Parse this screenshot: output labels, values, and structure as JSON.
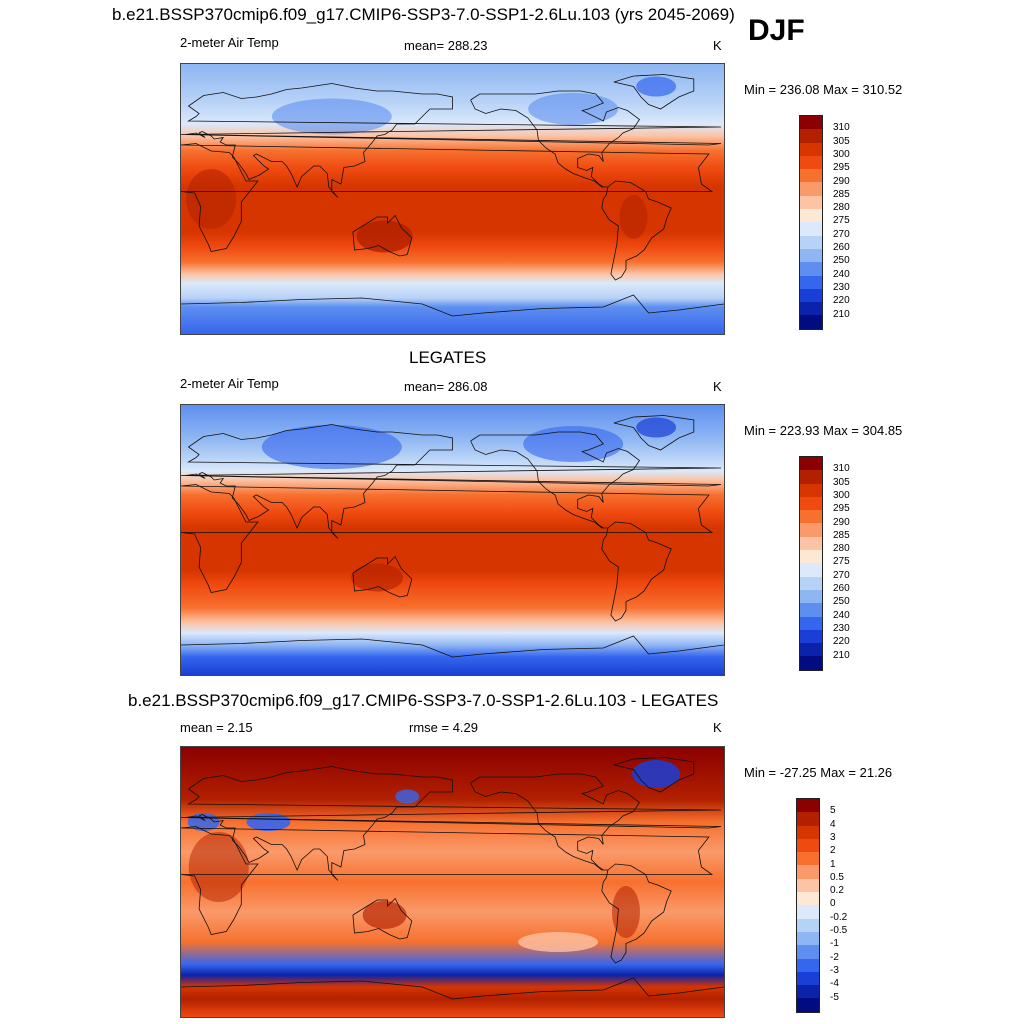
{
  "figure_title": "b.e21.BSSP370cmip6.f09_g17.CMIP6-SSP3-7.0-SSP1-2.6Lu.103 (yrs 2045-2069)",
  "season": "DJF",
  "panels": [
    {
      "id": "model",
      "heading": "",
      "left_label": "2-meter Air Temp",
      "center_label": "mean= 288.23",
      "right_label": "K",
      "range_text": "Min = 236.08 Max = 310.52",
      "palette": "temp"
    },
    {
      "id": "obs",
      "heading": "LEGATES",
      "left_label": "2-meter Air Temp",
      "center_label": "mean= 286.08",
      "right_label": "K",
      "range_text": "Min = 223.93 Max = 304.85",
      "palette": "temp"
    },
    {
      "id": "diff",
      "heading": "b.e21.BSSP370cmip6.f09_g17.CMIP6-SSP3-7.0-SSP1-2.6Lu.103 - LEGATES",
      "left_label": "mean =   2.15",
      "center_label": "rmse =   4.29",
      "right_label": "K",
      "range_text": "Min = -27.25 Max =  21.26",
      "palette": "diff"
    }
  ],
  "colorbars": {
    "temp": {
      "labels": [
        "310",
        "305",
        "300",
        "295",
        "290",
        "285",
        "280",
        "275",
        "270",
        "260",
        "250",
        "240",
        "230",
        "220",
        "210"
      ],
      "colors": [
        "#8b0000",
        "#b22000",
        "#d63500",
        "#ef4a10",
        "#f7702e",
        "#fa9a6a",
        "#fcc3a5",
        "#fde8d6",
        "#dbe9fb",
        "#b7d2f7",
        "#8eb6f3",
        "#5e8ff0",
        "#3566ee",
        "#1a3fd6",
        "#0a23aa",
        "#000c80"
      ]
    },
    "diff": {
      "labels": [
        "5",
        "4",
        "3",
        "2",
        "1",
        "0.5",
        "0.2",
        "0",
        "-0.2",
        "-0.5",
        "-1",
        "-2",
        "-3",
        "-4",
        "-5"
      ],
      "colors": [
        "#8b0000",
        "#b22000",
        "#d63500",
        "#ef4a10",
        "#f7702e",
        "#fa9a6a",
        "#fcc3a5",
        "#fde8d6",
        "#dbe9fb",
        "#b7d2f7",
        "#8eb6f3",
        "#5e8ff0",
        "#3566ee",
        "#1a3fd6",
        "#0a23aa",
        "#000c80"
      ]
    }
  },
  "map_fields": {
    "temp_model": [
      {
        "lat": 90,
        "color": "#8eb6f3"
      },
      {
        "lat": 65,
        "color": "#b7d2f7"
      },
      {
        "lat": 50,
        "color": "#dbe9fb"
      },
      {
        "lat": 42,
        "color": "#fcc3a5"
      },
      {
        "lat": 32,
        "color": "#f7702e"
      },
      {
        "lat": 20,
        "color": "#ef4a10"
      },
      {
        "lat": 8,
        "color": "#d63500"
      },
      {
        "lat": -22,
        "color": "#d63500"
      },
      {
        "lat": -32,
        "color": "#ef4a10"
      },
      {
        "lat": -42,
        "color": "#f7702e"
      },
      {
        "lat": -50,
        "color": "#fcc3a5"
      },
      {
        "lat": -56,
        "color": "#dbe9fb"
      },
      {
        "lat": -66,
        "color": "#b7d2f7"
      },
      {
        "lat": -72,
        "color": "#5e8ff0"
      },
      {
        "lat": -90,
        "color": "#3566ee"
      }
    ],
    "temp_obs": [
      {
        "lat": 90,
        "color": "#5e8ff0"
      },
      {
        "lat": 68,
        "color": "#8eb6f3"
      },
      {
        "lat": 55,
        "color": "#b7d2f7"
      },
      {
        "lat": 46,
        "color": "#dbe9fb"
      },
      {
        "lat": 40,
        "color": "#fcc3a5"
      },
      {
        "lat": 30,
        "color": "#f7702e"
      },
      {
        "lat": 18,
        "color": "#ef4a10"
      },
      {
        "lat": 8,
        "color": "#d63500"
      },
      {
        "lat": -20,
        "color": "#d63500"
      },
      {
        "lat": -30,
        "color": "#ef4a10"
      },
      {
        "lat": -45,
        "color": "#f7702e"
      },
      {
        "lat": -55,
        "color": "#fcc3a5"
      },
      {
        "lat": -62,
        "color": "#dbe9fb"
      },
      {
        "lat": -70,
        "color": "#8eb6f3"
      },
      {
        "lat": -78,
        "color": "#3566ee"
      },
      {
        "lat": -90,
        "color": "#1a3fd6"
      }
    ],
    "diff": [
      {
        "lat": 90,
        "color": "#8b0000"
      },
      {
        "lat": 55,
        "color": "#b22000"
      },
      {
        "lat": 40,
        "color": "#f7702e"
      },
      {
        "lat": 20,
        "color": "#fa9a6a"
      },
      {
        "lat": 0,
        "color": "#f7702e"
      },
      {
        "lat": -20,
        "color": "#fa9a6a"
      },
      {
        "lat": -40,
        "color": "#f7702e"
      },
      {
        "lat": -55,
        "color": "#3566ee"
      },
      {
        "lat": -62,
        "color": "#0a23aa"
      },
      {
        "lat": -70,
        "color": "#d63500"
      },
      {
        "lat": -78,
        "color": "#b22000"
      },
      {
        "lat": -90,
        "color": "#ef4a10"
      }
    ]
  }
}
